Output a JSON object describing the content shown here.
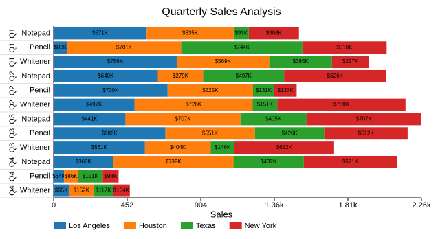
{
  "chart_data": {
    "type": "stacked_bar_horizontal",
    "title": "Quarterly Sales Analysis",
    "x_label": "Sales",
    "categories": [
      "Notepad",
      "Pencil",
      "Whitener",
      "Notepad",
      "Pencil",
      "Whitener",
      "Notepad",
      "Pencil",
      "Whitener",
      "Notepad",
      "Pencil",
      "Whitener"
    ],
    "groups": [
      "Q1",
      "Q1",
      "Q1",
      "Q2",
      "Q2",
      "Q2",
      "Q3",
      "Q3",
      "Q3",
      "Q4",
      "Q4",
      "Q4"
    ],
    "series": [
      {
        "name": "Los Angeles",
        "color": "#1f77b4",
        "values": [
          571,
          83,
          756,
          640,
          700,
          497,
          441,
          686,
          561,
          366,
          64,
          95
        ],
        "value_labels": [
          "$571K",
          "$83K",
          "$756K",
          "$640K",
          "$700K",
          "$497K",
          "$441K",
          "$686K",
          "$561K",
          "$366K",
          "$64K",
          "$95K"
        ]
      },
      {
        "name": "Houston",
        "color": "#ff7f0e",
        "values": [
          535,
          701,
          569,
          279,
          525,
          726,
          707,
          551,
          404,
          739,
          86,
          152
        ],
        "value_labels": [
          "$535K",
          "$701K",
          "$569K",
          "$279K",
          "$525K",
          "$726K",
          "$707K",
          "$551K",
          "$404K",
          "$739K",
          "$86K",
          "$152K"
        ]
      },
      {
        "name": "Texas",
        "color": "#2ca02c",
        "values": [
          93,
          744,
          385,
          497,
          131,
          151,
          405,
          426,
          146,
          432,
          151,
          117
        ],
        "value_labels": [
          "$93K",
          "$744K",
          "$385K",
          "$497K",
          "$131K",
          "$151K",
          "$405K",
          "$426K",
          "$146K",
          "$432K",
          "$151K",
          "$117K"
        ]
      },
      {
        "name": "New York",
        "color": "#d62728",
        "values": [
          308,
          518,
          227,
          626,
          137,
          788,
          707,
          512,
          612,
          571,
          98,
          104
        ],
        "value_labels": [
          "$308K",
          "$518K",
          "$227K",
          "$626K",
          "$137K",
          "$788K",
          "$707K",
          "$512K",
          "$612K",
          "$571K",
          "$98K",
          "$104K"
        ]
      }
    ],
    "xlim": [
      0,
      2260
    ],
    "xticks": [
      0,
      452,
      904,
      {
        "value": 1356,
        "label": "1.36k"
      },
      {
        "value": 1808,
        "label": "1.81k"
      },
      {
        "value": 2260,
        "label": "2.26k"
      }
    ]
  }
}
